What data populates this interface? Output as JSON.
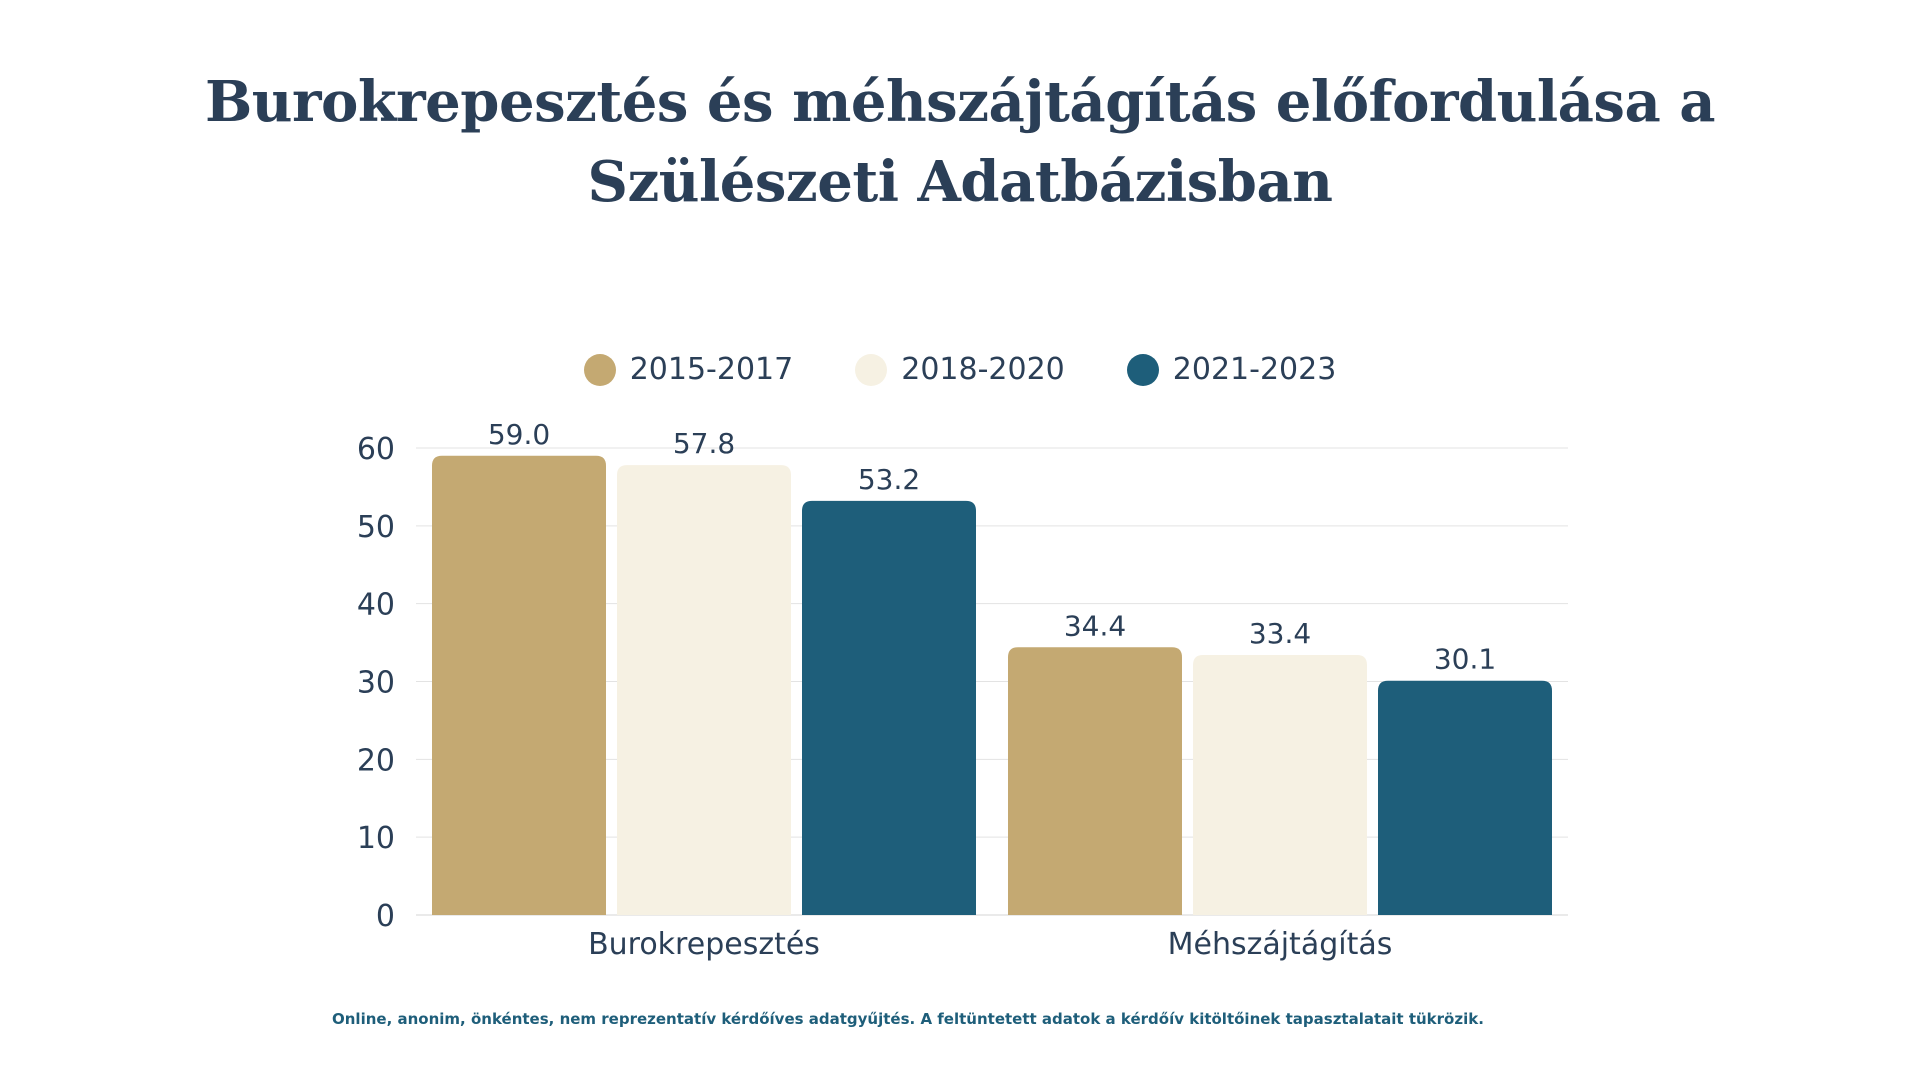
{
  "title_line1": "Burokrepesztés és méhszájtágítás előfordulása a",
  "title_line2": "Szülészeti Adatbázisban",
  "footnote": "Online, anonim, önkéntes, nem reprezentatív kérdőíves adatgyűjtés. A feltüntetett adatok a kérdőív kitöltőinek tapasztalatait tükrözik.",
  "colors": {
    "series_1": "#c4a972",
    "series_2": "#f6f1e3",
    "series_3": "#1e5e7a",
    "text": "#2b3f57"
  },
  "chart_data": {
    "type": "bar",
    "title": "Burokrepesztés és méhszájtágítás előfordulása a Szülészeti Adatbázisban",
    "categories": [
      "Burokrepesztés",
      "Méhszájtágítás"
    ],
    "series": [
      {
        "name": "2015-2017",
        "values": [
          59.0,
          34.4
        ]
      },
      {
        "name": "2018-2020",
        "values": [
          57.8,
          33.4
        ]
      },
      {
        "name": "2021-2023",
        "values": [
          53.2,
          30.1
        ]
      }
    ],
    "ylim": [
      0,
      60
    ],
    "yticks": [
      0,
      10,
      20,
      30,
      40,
      50,
      60
    ],
    "grid": true,
    "legend_position": "top",
    "value_labels": [
      "59.0",
      "57.8",
      "53.2",
      "34.4",
      "33.4",
      "30.1"
    ]
  }
}
